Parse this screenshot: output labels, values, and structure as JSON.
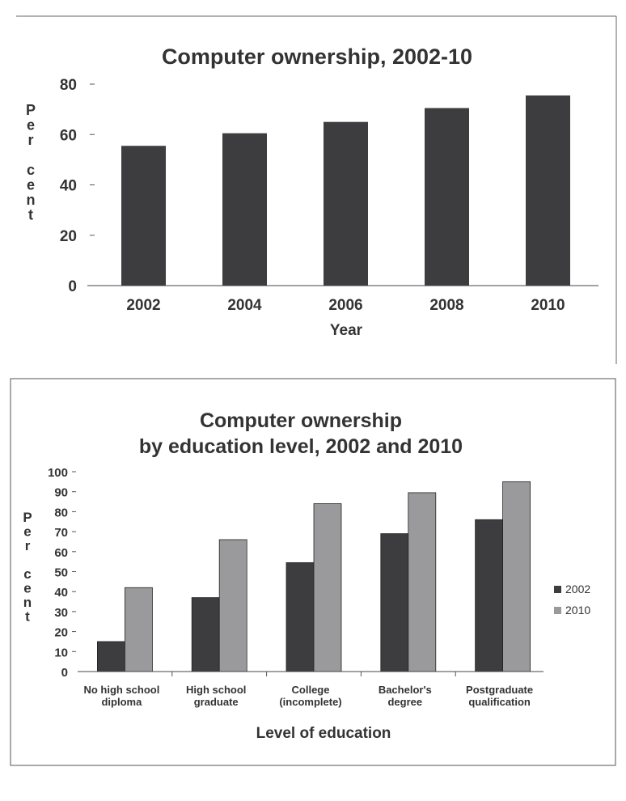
{
  "chart_data": [
    {
      "type": "bar",
      "title": "Computer ownership, 2002-10",
      "xlabel": "Year",
      "ylabel": "Per cent",
      "categories": [
        "2002",
        "2004",
        "2006",
        "2008",
        "2010"
      ],
      "values": [
        55.5,
        60.5,
        65,
        70.5,
        75.5
      ],
      "ylim": [
        0,
        80
      ],
      "yticks": [
        0,
        20,
        40,
        60,
        80
      ],
      "grid": false,
      "colors": {
        "bar": "#3d3d3f"
      }
    },
    {
      "type": "bar",
      "title_lines": [
        "Computer ownership",
        "by education level, 2002 and 2010"
      ],
      "xlabel": "Level of education",
      "ylabel": "Per cent",
      "categories": [
        [
          "No high school",
          "diploma"
        ],
        [
          "High school",
          "graduate"
        ],
        [
          "College",
          "(incomplete)"
        ],
        [
          "Bachelor's",
          "degree"
        ],
        [
          "Postgraduate",
          "qualification"
        ]
      ],
      "series": [
        {
          "name": "2002",
          "values": [
            15,
            37,
            54.5,
            69,
            76
          ],
          "color": "#3d3d3f"
        },
        {
          "name": "2010",
          "values": [
            42,
            66,
            84,
            89.5,
            95
          ],
          "color": "#9a9a9c"
        }
      ],
      "ylim": [
        0,
        100
      ],
      "yticks": [
        0,
        10,
        20,
        30,
        40,
        50,
        60,
        70,
        80,
        90,
        100
      ],
      "legend": "right",
      "grid": false
    }
  ]
}
